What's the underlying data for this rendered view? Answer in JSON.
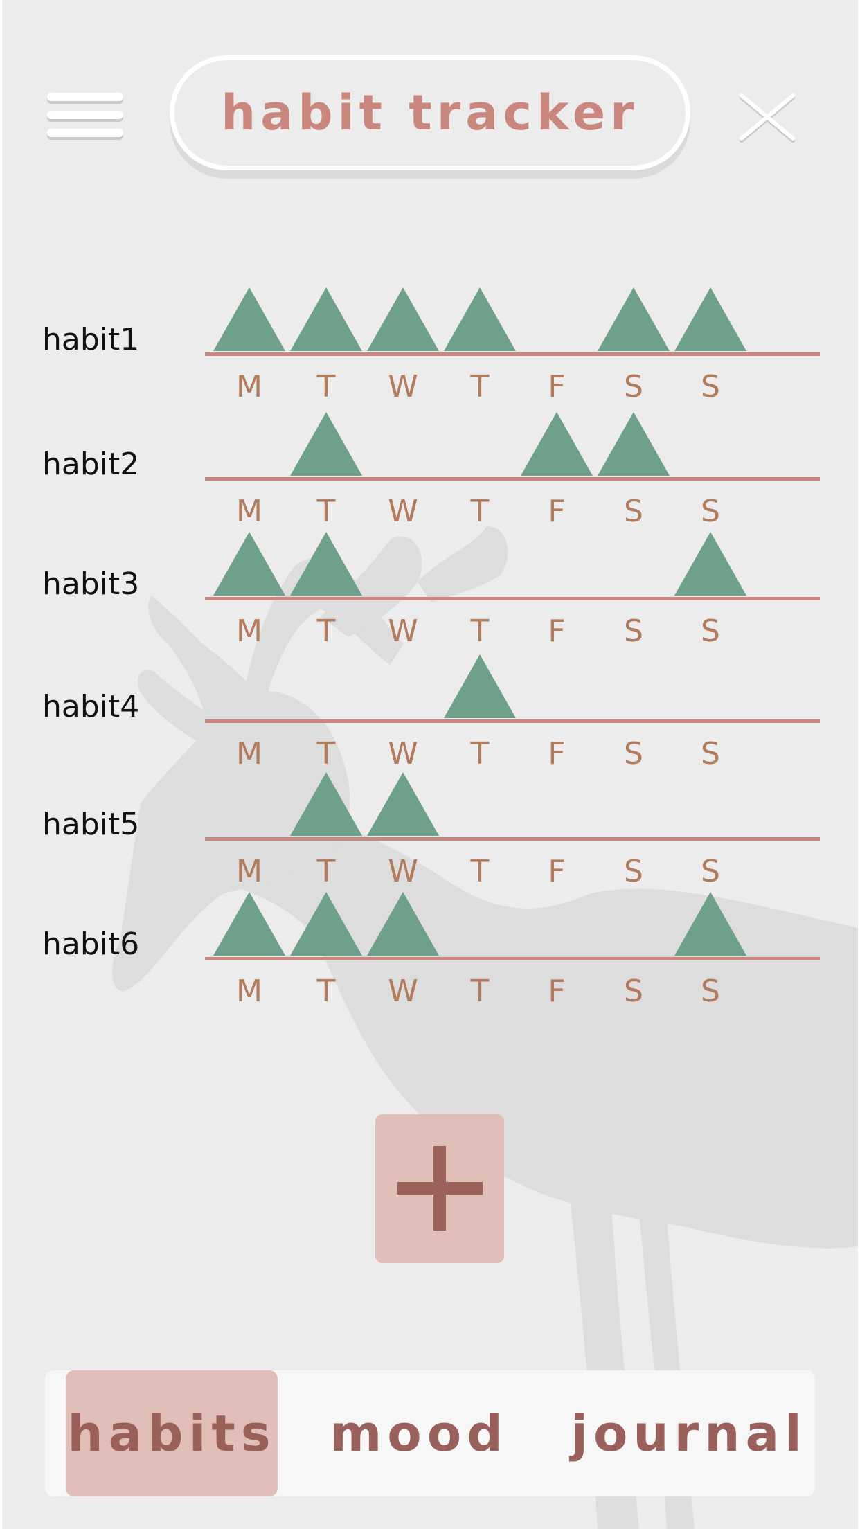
{
  "header": {
    "title": "habit tracker",
    "menu_icon": "hamburger-menu-icon",
    "close_icon": "close-icon"
  },
  "days": [
    "M",
    "T",
    "W",
    "T",
    "F",
    "S",
    "S"
  ],
  "habits": [
    {
      "name": "habit1",
      "done": [
        true,
        true,
        true,
        true,
        false,
        true,
        true
      ]
    },
    {
      "name": "habit2",
      "done": [
        false,
        true,
        false,
        false,
        true,
        true,
        false
      ]
    },
    {
      "name": "habit3",
      "done": [
        true,
        true,
        false,
        false,
        false,
        false,
        true
      ]
    },
    {
      "name": "habit4",
      "done": [
        false,
        false,
        false,
        true,
        false,
        false,
        false
      ]
    },
    {
      "name": "habit5",
      "done": [
        false,
        true,
        true,
        false,
        false,
        false,
        false
      ]
    },
    {
      "name": "habit6",
      "done": [
        true,
        true,
        true,
        false,
        false,
        false,
        true
      ]
    }
  ],
  "add_button": {
    "icon": "plus-icon"
  },
  "nav": {
    "active": "habits",
    "tabs": [
      {
        "id": "habits",
        "label": "habits"
      },
      {
        "id": "mood",
        "label": "mood"
      },
      {
        "id": "journal",
        "label": "journal"
      }
    ]
  },
  "colors": {
    "background": "#ececec",
    "accent": "#c9877d",
    "done_marker": "#6fa089",
    "day_label": "#b27c5c",
    "nav_active": "#e2beb8",
    "nav_text": "#996159"
  }
}
